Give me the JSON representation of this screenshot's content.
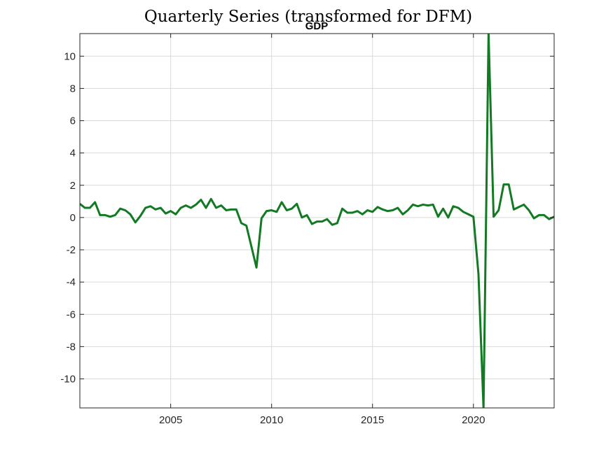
{
  "figure": {
    "suptitle": "Quarterly Series (transformed for DFM)"
  },
  "chart_data": {
    "type": "line",
    "title": "GDP",
    "xlabel": "",
    "ylabel": "",
    "xlim": [
      2000.5,
      2024.0
    ],
    "ylim": [
      -11.8,
      11.4
    ],
    "xticks": [
      2005,
      2010,
      2015,
      2020
    ],
    "yticks": [
      -10,
      -8,
      -6,
      -4,
      -2,
      0,
      2,
      4,
      6,
      8,
      10
    ],
    "grid": true,
    "legend": "none",
    "colors": {
      "line": "#117a22"
    },
    "series": [
      {
        "name": "",
        "x": [
          2000.5,
          2000.75,
          2001.0,
          2001.25,
          2001.5,
          2001.75,
          2002.0,
          2002.25,
          2002.5,
          2002.75,
          2003.0,
          2003.25,
          2003.5,
          2003.75,
          2004.0,
          2004.25,
          2004.5,
          2004.75,
          2005.0,
          2005.25,
          2005.5,
          2005.75,
          2006.0,
          2006.25,
          2006.5,
          2006.75,
          2007.0,
          2007.25,
          2007.5,
          2007.75,
          2008.0,
          2008.25,
          2008.5,
          2008.75,
          2009.0,
          2009.25,
          2009.5,
          2009.75,
          2010.0,
          2010.25,
          2010.5,
          2010.75,
          2011.0,
          2011.25,
          2011.5,
          2011.75,
          2012.0,
          2012.25,
          2012.5,
          2012.75,
          2013.0,
          2013.25,
          2013.5,
          2013.75,
          2014.0,
          2014.25,
          2014.5,
          2014.75,
          2015.0,
          2015.25,
          2015.5,
          2015.75,
          2016.0,
          2016.25,
          2016.5,
          2016.75,
          2017.0,
          2017.25,
          2017.5,
          2017.75,
          2018.0,
          2018.25,
          2018.5,
          2018.75,
          2019.0,
          2019.25,
          2019.5,
          2019.75,
          2020.0,
          2020.25,
          2020.5,
          2020.75,
          2021.0,
          2021.25,
          2021.5,
          2021.75,
          2022.0,
          2022.25,
          2022.5,
          2022.75,
          2023.0,
          2023.25,
          2023.5,
          2023.75,
          2024.0
        ],
        "values": [
          0.85,
          0.6,
          0.6,
          0.95,
          0.15,
          0.15,
          0.05,
          0.15,
          0.55,
          0.45,
          0.2,
          -0.3,
          0.1,
          0.6,
          0.7,
          0.5,
          0.6,
          0.25,
          0.4,
          0.2,
          0.6,
          0.75,
          0.6,
          0.8,
          1.1,
          0.6,
          1.15,
          0.6,
          0.75,
          0.45,
          0.5,
          0.5,
          -0.35,
          -0.5,
          -1.8,
          -3.1,
          -0.05,
          0.4,
          0.45,
          0.35,
          0.95,
          0.45,
          0.55,
          0.85,
          0.0,
          0.15,
          -0.4,
          -0.25,
          -0.25,
          -0.1,
          -0.45,
          -0.35,
          0.55,
          0.3,
          0.3,
          0.4,
          0.2,
          0.45,
          0.35,
          0.65,
          0.5,
          0.4,
          0.45,
          0.6,
          0.2,
          0.45,
          0.8,
          0.7,
          0.8,
          0.75,
          0.8,
          0.05,
          0.55,
          0.0,
          0.7,
          0.6,
          0.35,
          0.2,
          0.05,
          -3.5,
          -11.8,
          11.4,
          0.05,
          0.45,
          2.05,
          2.05,
          0.5,
          0.65,
          0.8,
          0.45,
          -0.05,
          0.15,
          0.15,
          -0.1,
          0.05
        ]
      }
    ]
  }
}
